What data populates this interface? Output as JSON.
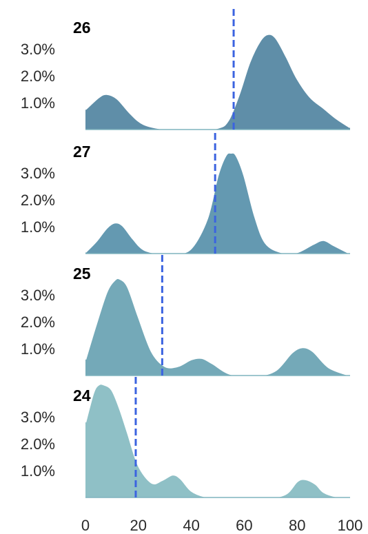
{
  "chart_data": {
    "type": "area",
    "subtype": "ridgeline",
    "title": "",
    "xlabel": "",
    "ylabel": "",
    "xlim": [
      0,
      100
    ],
    "x_ticks": [
      0,
      20,
      40,
      60,
      80,
      100
    ],
    "x_tick_labels": [
      "0",
      "20",
      "40",
      "60",
      "80",
      "100"
    ],
    "ylim": [
      0,
      0.04
    ],
    "y_ticks": [
      0.01,
      0.02,
      0.03
    ],
    "y_tick_labels": [
      "1.0%",
      "2.0%",
      "3.0%"
    ],
    "grid": false,
    "legend": "none",
    "marker_color": "#3b63e0",
    "panels": [
      {
        "label": "26",
        "fill_color": "#5f8ea8",
        "mean_marker": 56,
        "x": [
          0,
          5,
          8,
          12,
          17,
          22,
          30,
          40,
          50,
          54,
          58,
          62,
          66,
          69,
          72,
          76,
          80,
          85,
          90,
          95,
          100
        ],
        "y": [
          0.0075,
          0.012,
          0.0132,
          0.0115,
          0.006,
          0.002,
          0.0002,
          0.0,
          0.0006,
          0.0035,
          0.013,
          0.025,
          0.033,
          0.0355,
          0.034,
          0.027,
          0.019,
          0.012,
          0.008,
          0.004,
          0.0008
        ]
      },
      {
        "label": "27",
        "fill_color": "#6499b1",
        "mean_marker": 49,
        "x": [
          0,
          4,
          8,
          11,
          14,
          18,
          22,
          28,
          34,
          40,
          46,
          50,
          53,
          55,
          57,
          60,
          64,
          68,
          74,
          80,
          86,
          90,
          94,
          100
        ],
        "y": [
          0.0005,
          0.0045,
          0.0095,
          0.0115,
          0.0105,
          0.0055,
          0.0015,
          0.0,
          0.0,
          0.002,
          0.013,
          0.029,
          0.0365,
          0.0375,
          0.0365,
          0.029,
          0.014,
          0.004,
          0.0005,
          0.0005,
          0.0035,
          0.005,
          0.003,
          0.0
        ]
      },
      {
        "label": "25",
        "fill_color": "#74a9b8",
        "mean_marker": 29,
        "x": [
          0,
          4,
          8,
          11,
          13,
          16,
          20,
          25,
          30,
          35,
          40,
          44,
          48,
          55,
          65,
          72,
          78,
          82,
          86,
          92,
          100
        ],
        "y": [
          0.006,
          0.019,
          0.031,
          0.0355,
          0.036,
          0.033,
          0.022,
          0.009,
          0.0035,
          0.0035,
          0.006,
          0.0065,
          0.0045,
          0.0005,
          0.0,
          0.002,
          0.0085,
          0.0105,
          0.009,
          0.003,
          0.0
        ]
      },
      {
        "label": "24",
        "fill_color": "#8fc0c6",
        "mean_marker": 19,
        "x": [
          0,
          3,
          5,
          7,
          10,
          13,
          16,
          20,
          25,
          29,
          33,
          36,
          40,
          45,
          50,
          60,
          70,
          76,
          80,
          83,
          87,
          90,
          95,
          100
        ],
        "y": [
          0.028,
          0.039,
          0.042,
          0.042,
          0.04,
          0.033,
          0.024,
          0.012,
          0.0055,
          0.0065,
          0.0085,
          0.007,
          0.0025,
          0.0004,
          0.0,
          0.0,
          0.0,
          0.0015,
          0.006,
          0.0068,
          0.005,
          0.002,
          0.0003,
          0.0
        ]
      }
    ]
  }
}
